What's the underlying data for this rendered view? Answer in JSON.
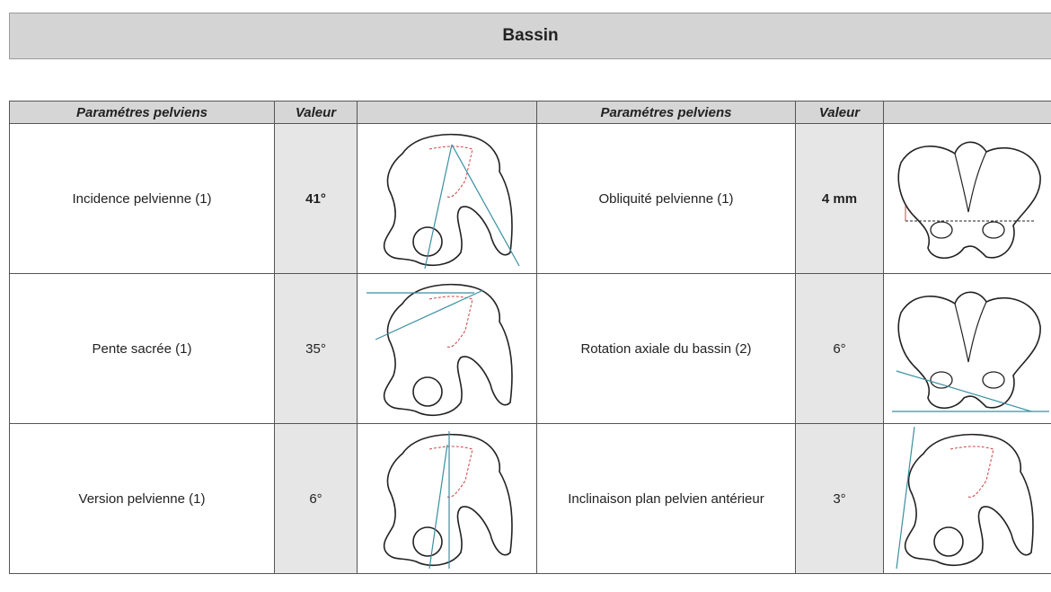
{
  "header": {
    "title": "Bassin"
  },
  "table": {
    "headers": [
      "Paramétres pelviens",
      "Valeur",
      "Paramétres pelviens",
      "Valeur"
    ],
    "rows": [
      [
        "Incidence pelvienne (1)",
        "41°",
        "Obliquité pelvienne (1)",
        "4 mm"
      ],
      [
        "Pente sacrée (1)",
        "35°",
        "Rotation axiale du bassin (2)",
        "6°"
      ],
      [
        "Version pelvienne (1)",
        "6°",
        "Inclinaison plan pelvien antérieur",
        "3°"
      ]
    ]
  }
}
